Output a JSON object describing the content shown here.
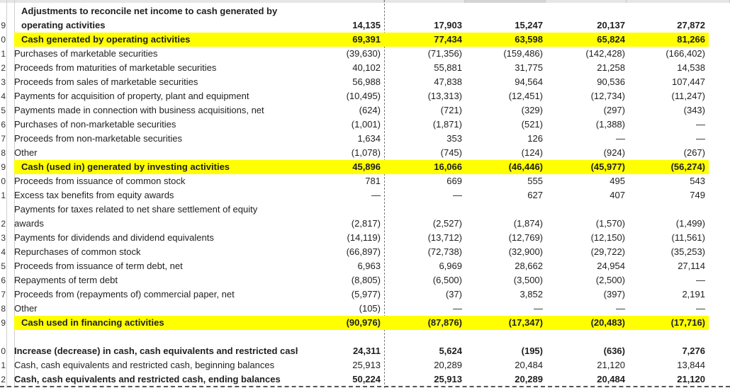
{
  "rows": [
    {
      "row_number": "",
      "label": "Adjustments to reconcile net income to cash generated by",
      "style": "bold-indent",
      "values": [
        "",
        "",
        "",
        "",
        ""
      ]
    },
    {
      "row_number": "9",
      "label": "operating activities",
      "style": "bold-indent",
      "values": [
        "14,135",
        "17,903",
        "15,247",
        "20,137",
        "27,872"
      ]
    },
    {
      "row_number": "0",
      "label": "Cash generated by operating activities",
      "style": "highlight",
      "values": [
        "69,391",
        "77,434",
        "63,598",
        "65,824",
        "81,266"
      ]
    },
    {
      "row_number": "1",
      "label": "Purchases of marketable securities",
      "style": "normal",
      "values": [
        "(39,630)",
        "(71,356)",
        "(159,486)",
        "(142,428)",
        "(166,402)"
      ]
    },
    {
      "row_number": "2",
      "label": "Proceeds from maturities of marketable securities",
      "style": "normal",
      "values": [
        "40,102",
        "55,881",
        "31,775",
        "21,258",
        "14,538"
      ]
    },
    {
      "row_number": "3",
      "label": "Proceeds from sales of marketable securities",
      "style": "normal",
      "values": [
        "56,988",
        "47,838",
        "94,564",
        "90,536",
        "107,447"
      ]
    },
    {
      "row_number": "4",
      "label": "Payments for acquisition of property, plant and equipment",
      "style": "normal",
      "values": [
        "(10,495)",
        "(13,313)",
        "(12,451)",
        "(12,734)",
        "(11,247)"
      ]
    },
    {
      "row_number": "5",
      "label": "Payments made in connection with business acquisitions, net",
      "style": "normal",
      "values": [
        "(624)",
        "(721)",
        "(329)",
        "(297)",
        "(343)"
      ]
    },
    {
      "row_number": "6",
      "label": "Purchases of non-marketable securities",
      "style": "normal",
      "values": [
        "(1,001)",
        "(1,871)",
        "(521)",
        "(1,388)",
        "—"
      ]
    },
    {
      "row_number": "7",
      "label": "Proceeds from non-marketable securities",
      "style": "normal",
      "values": [
        "1,634",
        "353",
        "126",
        "—",
        "—"
      ]
    },
    {
      "row_number": "8",
      "label": "Other",
      "style": "normal",
      "values": [
        "(1,078)",
        "(745)",
        "(124)",
        "(924)",
        "(267)"
      ]
    },
    {
      "row_number": "9",
      "label": "Cash (used in) generated by investing activities",
      "style": "highlight",
      "values": [
        "45,896",
        "16,066",
        "(46,446)",
        "(45,977)",
        "(56,274)"
      ]
    },
    {
      "row_number": "0",
      "label": "Proceeds from issuance of common stock",
      "style": "normal",
      "values": [
        "781",
        "669",
        "555",
        "495",
        "543"
      ]
    },
    {
      "row_number": "1",
      "label": "Excess tax benefits from equity awards",
      "style": "normal",
      "values": [
        "—",
        "—",
        "627",
        "407",
        "749"
      ]
    },
    {
      "row_number": "",
      "label": "Payments for taxes related to net share settlement of equity",
      "style": "normal",
      "values": [
        "",
        "",
        "",
        "",
        ""
      ]
    },
    {
      "row_number": "2",
      "label": "awards",
      "style": "normal",
      "values": [
        "(2,817)",
        "(2,527)",
        "(1,874)",
        "(1,570)",
        "(1,499)"
      ]
    },
    {
      "row_number": "3",
      "label": "Payments for dividends and dividend equivalents",
      "style": "normal",
      "values": [
        "(14,119)",
        "(13,712)",
        "(12,769)",
        "(12,150)",
        "(11,561)"
      ]
    },
    {
      "row_number": "4",
      "label": "Repurchases of common stock",
      "style": "normal",
      "values": [
        "(66,897)",
        "(72,738)",
        "(32,900)",
        "(29,722)",
        "(35,253)"
      ]
    },
    {
      "row_number": "5",
      "label": "Proceeds from issuance of term debt, net",
      "style": "normal",
      "values": [
        "6,963",
        "6,969",
        "28,662",
        "24,954",
        "27,114"
      ]
    },
    {
      "row_number": "6",
      "label": "Repayments of term debt",
      "style": "normal",
      "values": [
        "(8,805)",
        "(6,500)",
        "(3,500)",
        "(2,500)",
        "—"
      ]
    },
    {
      "row_number": "7",
      "label": "Proceeds from (repayments of) commercial paper, net",
      "style": "normal",
      "values": [
        "(5,977)",
        "(37)",
        "3,852",
        "(397)",
        "2,191"
      ]
    },
    {
      "row_number": "8",
      "label": "Other",
      "style": "normal",
      "values": [
        "(105)",
        "—",
        "—",
        "—",
        "—"
      ]
    },
    {
      "row_number": "9",
      "label": "Cash used in financing activities",
      "style": "highlight",
      "values": [
        "(90,976)",
        "(87,876)",
        "(17,347)",
        "(20,483)",
        "(17,716)"
      ]
    },
    {
      "row_number": "",
      "label": "",
      "style": "normal",
      "values": [
        "",
        "",
        "",
        "",
        ""
      ]
    },
    {
      "row_number": "0",
      "label": "Increase (decrease) in cash, cash equivalents and restricted cash",
      "style": "bold",
      "values": [
        "24,311",
        "5,624",
        "(195)",
        "(636)",
        "7,276"
      ]
    },
    {
      "row_number": "1",
      "label": "Cash, cash equivalents and restricted cash, beginning balances",
      "style": "normal",
      "values": [
        "25,913",
        "20,289",
        "20,484",
        "21,120",
        "13,844"
      ]
    },
    {
      "row_number": "2",
      "label": "Cash, cash equivalents and restricted cash, ending balances",
      "style": "bold",
      "values": [
        "50,224",
        "25,913",
        "20,289",
        "20,484",
        "21,120"
      ]
    }
  ],
  "colors": {
    "highlight": "#ffff00",
    "gridline": "#cfcfcf",
    "dashed_border": "#7a7a7a"
  }
}
